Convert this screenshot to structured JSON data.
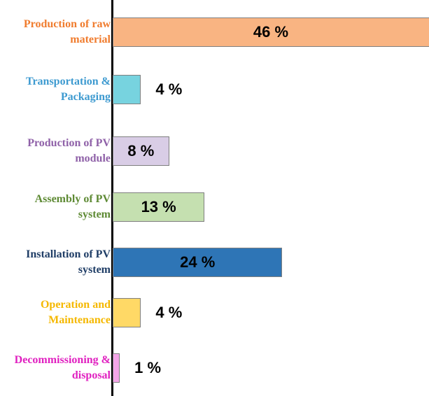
{
  "chart_data": {
    "type": "hbar",
    "categories": [
      "Production of raw material",
      "Transportation & Packaging",
      "Production of PV module",
      "Assembly of PV system",
      "Installation of PV system",
      "Operation and Maintenance",
      "Decommissioning & disposal"
    ],
    "values": [
      46,
      4,
      8,
      13,
      24,
      4,
      1
    ],
    "value_labels": [
      "46 %",
      "4 %",
      "8 %",
      "13 %",
      "24 %",
      "4 %",
      "1 %"
    ],
    "colors": [
      "#f9b482",
      "#77d3df",
      "#d9cde6",
      "#c5e0b0",
      "#2e75b6",
      "#ffd966",
      "#f4a6e8"
    ],
    "label_colors": [
      "#f07c2e",
      "#3d9ad0",
      "#8f61a8",
      "#5e8a34",
      "#1f3d66",
      "#f5b800",
      "#e020c0"
    ]
  }
}
